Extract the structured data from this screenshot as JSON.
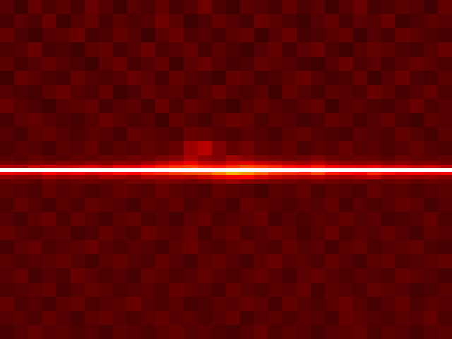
{
  "chart_data": {
    "type": "heatmap",
    "color": "hot",
    "color_range": [
      0,
      100
    ],
    "tick_labels": false,
    "x_edges": [
      0,
      20,
      40,
      60,
      80,
      100,
      120,
      140,
      160,
      180,
      200,
      220,
      240,
      260,
      280,
      300,
      320,
      340,
      360,
      380,
      400,
      420,
      440,
      460,
      480,
      500,
      520,
      540,
      560,
      580,
      600,
      620,
      640
    ],
    "y_edges": [
      0,
      20,
      40,
      60,
      80,
      100,
      120,
      140,
      160,
      180,
      200,
      220,
      228,
      234,
      238,
      244,
      248,
      254,
      260,
      280,
      300,
      320,
      340,
      360,
      380,
      400,
      420,
      440,
      460,
      480
    ],
    "values": [
      [
        12,
        9,
        14,
        11,
        13,
        10,
        15,
        12,
        9,
        13,
        11,
        14,
        10,
        12,
        16,
        11,
        9,
        13,
        12,
        10,
        14,
        11,
        13,
        9,
        12,
        15,
        10,
        11,
        13,
        12,
        9,
        14
      ],
      [
        10,
        13,
        11,
        15,
        9,
        12,
        14,
        10,
        13,
        11,
        12,
        16,
        13,
        9,
        11,
        14,
        12,
        10,
        15,
        13,
        11,
        9,
        12,
        14,
        10,
        13,
        12,
        15,
        9,
        11,
        13,
        12
      ],
      [
        14,
        11,
        9,
        12,
        13,
        15,
        10,
        11,
        14,
        12,
        9,
        13,
        15,
        11,
        12,
        10,
        13,
        14,
        9,
        12,
        15,
        10,
        11,
        13,
        14,
        9,
        12,
        10,
        14,
        13,
        11,
        10
      ],
      [
        11,
        12,
        15,
        10,
        11,
        9,
        13,
        14,
        10,
        12,
        15,
        11,
        12,
        14,
        10,
        13,
        11,
        9,
        12,
        14,
        10,
        13,
        15,
        11,
        9,
        12,
        14,
        13,
        11,
        10,
        12,
        15
      ],
      [
        13,
        10,
        12,
        14,
        12,
        11,
        9,
        13,
        15,
        10,
        12,
        14,
        9,
        13,
        15,
        12,
        10,
        11,
        14,
        13,
        12,
        10,
        9,
        12,
        15,
        11,
        13,
        10,
        12,
        14,
        13,
        11
      ],
      [
        9,
        14,
        13,
        11,
        10,
        14,
        12,
        11,
        12,
        15,
        13,
        10,
        14,
        12,
        11,
        9,
        14,
        13,
        10,
        11,
        13,
        15,
        12,
        10,
        11,
        14,
        9,
        12,
        15,
        11,
        10,
        13
      ],
      [
        12,
        11,
        10,
        13,
        15,
        12,
        11,
        14,
        9,
        11,
        14,
        12,
        13,
        10,
        12,
        15,
        12,
        11,
        13,
        9,
        14,
        12,
        10,
        13,
        12,
        11,
        15,
        13,
        10,
        12,
        14,
        11
      ],
      [
        15,
        12,
        11,
        9,
        12,
        13,
        14,
        10,
        12,
        13,
        10,
        15,
        11,
        14,
        13,
        11,
        9,
        12,
        14,
        12,
        11,
        13,
        14,
        9,
        12,
        13,
        11,
        10,
        12,
        15,
        11,
        12
      ],
      [
        10,
        13,
        14,
        12,
        11,
        10,
        12,
        15,
        13,
        11,
        12,
        9,
        14,
        12,
        10,
        13,
        15,
        14,
        11,
        13,
        12,
        10,
        11,
        14,
        13,
        10,
        12,
        14,
        11,
        9,
        13,
        12
      ],
      [
        12,
        10,
        13,
        14,
        12,
        11,
        13,
        12,
        10,
        14,
        13,
        12,
        11,
        15,
        14,
        12,
        11,
        13,
        12,
        10,
        13,
        14,
        12,
        11,
        10,
        13,
        12,
        11,
        14,
        12,
        10,
        13
      ],
      [
        11,
        13,
        12,
        10,
        13,
        12,
        14,
        11,
        13,
        12,
        14,
        13,
        15,
        22,
        26,
        18,
        14,
        16,
        13,
        12,
        14,
        11,
        13,
        12,
        15,
        12,
        13,
        11,
        12,
        14,
        12,
        11
      ],
      [
        13,
        12,
        14,
        13,
        12,
        14,
        13,
        15,
        14,
        16,
        15,
        17,
        19,
        24,
        20,
        18,
        22,
        19,
        17,
        16,
        15,
        16,
        18,
        15,
        14,
        15,
        14,
        13,
        15,
        14,
        13,
        14
      ],
      [
        16,
        15,
        17,
        16,
        18,
        17,
        19,
        18,
        20,
        19,
        22,
        26,
        30,
        34,
        28,
        26,
        30,
        32,
        28,
        26,
        24,
        22,
        25,
        21,
        20,
        19,
        20,
        18,
        19,
        17,
        18,
        16
      ],
      [
        26,
        24,
        28,
        30,
        27,
        29,
        31,
        28,
        33,
        32,
        36,
        40,
        44,
        46,
        42,
        40,
        44,
        48,
        45,
        42,
        38,
        36,
        40,
        35,
        33,
        32,
        34,
        30,
        31,
        28,
        30,
        27
      ],
      [
        100,
        100,
        100,
        100,
        100,
        100,
        100,
        100,
        100,
        100,
        100,
        100,
        100,
        100,
        100,
        100,
        100,
        100,
        100,
        100,
        100,
        100,
        100,
        100,
        100,
        100,
        100,
        100,
        100,
        100,
        100,
        100
      ],
      [
        34,
        32,
        30,
        36,
        33,
        35,
        31,
        34,
        38,
        36,
        40,
        42,
        46,
        48,
        50,
        56,
        62,
        58,
        52,
        46,
        44,
        42,
        48,
        40,
        38,
        36,
        42,
        38,
        34,
        36,
        33,
        35
      ],
      [
        20,
        18,
        19,
        22,
        20,
        21,
        19,
        23,
        22,
        20,
        24,
        23,
        26,
        25,
        28,
        32,
        34,
        36,
        30,
        27,
        25,
        24,
        26,
        23,
        22,
        24,
        26,
        21,
        22,
        20,
        21,
        19
      ],
      [
        14,
        15,
        13,
        16,
        14,
        15,
        16,
        14,
        15,
        17,
        16,
        18,
        17,
        16,
        18,
        20,
        22,
        19,
        18,
        17,
        16,
        15,
        17,
        16,
        15,
        16,
        14,
        15,
        16,
        14,
        15,
        14
      ],
      [
        13,
        12,
        11,
        14,
        12,
        13,
        11,
        12,
        14,
        13,
        12,
        15,
        13,
        12,
        11,
        14,
        13,
        12,
        10,
        13,
        12,
        14,
        11,
        13,
        12,
        11,
        14,
        12,
        13,
        11,
        12,
        13
      ],
      [
        11,
        14,
        12,
        10,
        13,
        11,
        14,
        13,
        12,
        10,
        13,
        12,
        14,
        11,
        13,
        12,
        10,
        14,
        13,
        12,
        11,
        13,
        12,
        14,
        10,
        13,
        11,
        12,
        14,
        13,
        10,
        12
      ],
      [
        12,
        10,
        13,
        15,
        11,
        14,
        12,
        10,
        13,
        14,
        11,
        12,
        10,
        13,
        14,
        11,
        12,
        13,
        15,
        10,
        12,
        11,
        13,
        12,
        14,
        12,
        13,
        10,
        11,
        12,
        14,
        11
      ],
      [
        14,
        12,
        11,
        12,
        13,
        10,
        11,
        14,
        12,
        11,
        15,
        13,
        12,
        14,
        10,
        13,
        14,
        11,
        12,
        14,
        13,
        10,
        12,
        15,
        11,
        13,
        12,
        14,
        12,
        10,
        13,
        12
      ],
      [
        10,
        13,
        14,
        11,
        12,
        13,
        15,
        12,
        11,
        13,
        12,
        10,
        13,
        15,
        12,
        11,
        13,
        14,
        12,
        11,
        14,
        12,
        13,
        10,
        13,
        14,
        11,
        12,
        13,
        14,
        11,
        10
      ],
      [
        13,
        11,
        12,
        13,
        14,
        12,
        10,
        13,
        14,
        12,
        11,
        14,
        12,
        10,
        13,
        14,
        12,
        10,
        13,
        15,
        12,
        13,
        11,
        14,
        12,
        10,
        13,
        14,
        11,
        12,
        13,
        14
      ],
      [
        12,
        14,
        10,
        12,
        11,
        15,
        13,
        11,
        12,
        10,
        14,
        13,
        11,
        12,
        14,
        12,
        11,
        13,
        14,
        12,
        10,
        13,
        14,
        12,
        11,
        13,
        12,
        11,
        14,
        13,
        12,
        10
      ],
      [
        11,
        12,
        13,
        14,
        10,
        12,
        14,
        13,
        11,
        12,
        13,
        11,
        14,
        13,
        12,
        10,
        14,
        12,
        11,
        13,
        12,
        14,
        10,
        13,
        12,
        11,
        14,
        13,
        12,
        10,
        11,
        13
      ],
      [
        14,
        11,
        12,
        10,
        13,
        14,
        11,
        12,
        13,
        15,
        12,
        11,
        13,
        10,
        11,
        13,
        12,
        14,
        13,
        10,
        14,
        12,
        11,
        13,
        15,
        12,
        10,
        12,
        14,
        11,
        13,
        12
      ],
      [
        12,
        13,
        11,
        14,
        12,
        10,
        13,
        14,
        12,
        11,
        13,
        14,
        12,
        13,
        11,
        12,
        14,
        10,
        12,
        13,
        11,
        13,
        12,
        10,
        14,
        13,
        12,
        11,
        13,
        12,
        14,
        11
      ],
      [
        10,
        12,
        14,
        12,
        13,
        11,
        12,
        10,
        13,
        12,
        11,
        13,
        14,
        12,
        13,
        11,
        10,
        12,
        14,
        11,
        13,
        12,
        10,
        12,
        13,
        14,
        11,
        13,
        12,
        10,
        12,
        13
      ]
    ]
  }
}
